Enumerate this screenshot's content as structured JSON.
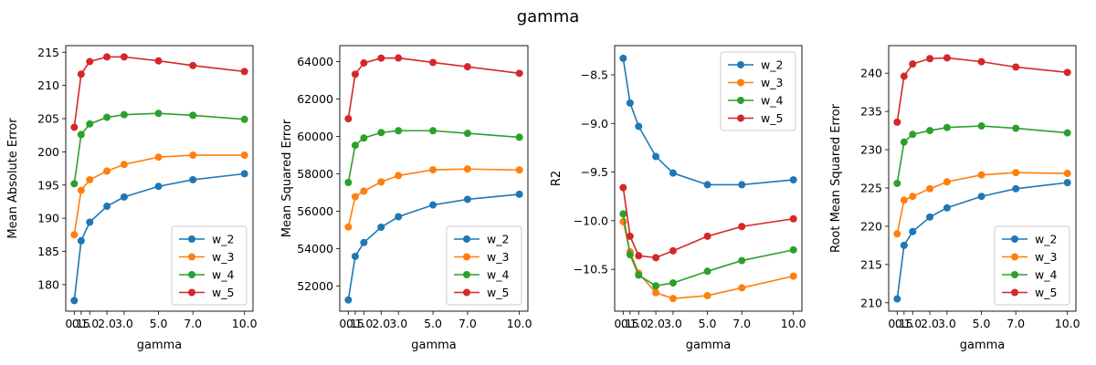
{
  "figure": {
    "title": "gamma"
  },
  "colors": {
    "w_2": "#1f77b4",
    "w_3": "#ff7f0e",
    "w_4": "#2ca02c",
    "w_5": "#d62728"
  },
  "chart_data": [
    {
      "type": "line",
      "xlabel": "gamma",
      "ylabel": "Mean Absolute Error",
      "x": [
        0.1,
        0.5,
        1.0,
        2.0,
        3.0,
        5.0,
        7.0,
        10.0
      ],
      "xticks": [
        0.1,
        0.5,
        1.0,
        2.0,
        3.0,
        5.0,
        7.0,
        10.0
      ],
      "xtick_labels": [
        "0.1",
        "0.5",
        "1.0",
        "2.0",
        "3.0",
        "5.0",
        "7.0",
        "10.0"
      ],
      "ylim": [
        176,
        216
      ],
      "yticks": [
        180,
        185,
        190,
        195,
        200,
        205,
        210,
        215
      ],
      "ytick_labels": [
        "180",
        "185",
        "190",
        "195",
        "200",
        "205",
        "210",
        "215"
      ],
      "legend": "lower-right",
      "grid": false,
      "series": [
        {
          "name": "w_2",
          "values": [
            177.6,
            186.6,
            189.4,
            191.8,
            193.2,
            194.8,
            195.8,
            196.7
          ]
        },
        {
          "name": "w_3",
          "values": [
            187.5,
            194.2,
            195.8,
            197.1,
            198.1,
            199.2,
            199.5,
            199.5
          ]
        },
        {
          "name": "w_4",
          "values": [
            195.2,
            202.6,
            204.2,
            205.2,
            205.6,
            205.8,
            205.5,
            204.9
          ]
        },
        {
          "name": "w_5",
          "values": [
            203.7,
            211.7,
            213.6,
            214.3,
            214.3,
            213.7,
            213.0,
            212.1
          ]
        }
      ]
    },
    {
      "type": "line",
      "xlabel": "gamma",
      "ylabel": "Mean Squared Error",
      "x": [
        0.1,
        0.5,
        1.0,
        2.0,
        3.0,
        5.0,
        7.0,
        10.0
      ],
      "xticks": [
        0.1,
        0.5,
        1.0,
        2.0,
        3.0,
        5.0,
        7.0,
        10.0
      ],
      "xtick_labels": [
        "0.1",
        "0.5",
        "1.0",
        "2.0",
        "3.0",
        "5.0",
        "7.0",
        "10.0"
      ],
      "ylim": [
        50650,
        64850
      ],
      "yticks": [
        52000,
        54000,
        56000,
        58000,
        60000,
        62000,
        64000
      ],
      "ytick_labels": [
        "52000",
        "54000",
        "56000",
        "58000",
        "60000",
        "62000",
        "64000"
      ],
      "legend": "lower-right",
      "grid": false,
      "series": [
        {
          "name": "w_2",
          "values": [
            51250,
            53580,
            54320,
            55140,
            55700,
            56330,
            56630,
            56900
          ]
        },
        {
          "name": "w_3",
          "values": [
            55150,
            56770,
            57070,
            57560,
            57900,
            58210,
            58250,
            58200
          ]
        },
        {
          "name": "w_4",
          "values": [
            57530,
            59520,
            59910,
            60200,
            60300,
            60300,
            60160,
            59950
          ]
        },
        {
          "name": "w_5",
          "values": [
            60940,
            63320,
            63920,
            64180,
            64190,
            63950,
            63720,
            63370
          ]
        }
      ]
    },
    {
      "type": "line",
      "xlabel": "gamma",
      "ylabel": "R2",
      "x": [
        0.1,
        0.5,
        1.0,
        2.0,
        3.0,
        5.0,
        7.0,
        10.0
      ],
      "xticks": [
        0.1,
        0.5,
        1.0,
        2.0,
        3.0,
        5.0,
        7.0,
        10.0
      ],
      "xtick_labels": [
        "0.1",
        "0.5",
        "1.0",
        "2.0",
        "3.0",
        "5.0",
        "7.0",
        "10.0"
      ],
      "ylim": [
        -10.93,
        -8.2
      ],
      "yticks": [
        -10.5,
        -10.0,
        -9.5,
        -9.0,
        -8.5
      ],
      "ytick_labels": [
        "−10.5",
        "−10.0",
        "−9.5",
        "−9.0",
        "−8.5"
      ],
      "legend": "upper-right",
      "grid": false,
      "series": [
        {
          "name": "w_2",
          "values": [
            -8.33,
            -8.79,
            -9.03,
            -9.34,
            -9.51,
            -9.63,
            -9.63,
            -9.58
          ]
        },
        {
          "name": "w_3",
          "values": [
            -10.01,
            -10.32,
            -10.54,
            -10.74,
            -10.8,
            -10.77,
            -10.69,
            -10.57
          ]
        },
        {
          "name": "w_4",
          "values": [
            -9.93,
            -10.35,
            -10.56,
            -10.67,
            -10.64,
            -10.52,
            -10.41,
            -10.3
          ]
        },
        {
          "name": "w_5",
          "values": [
            -9.66,
            -10.16,
            -10.36,
            -10.38,
            -10.31,
            -10.16,
            -10.06,
            -9.98
          ]
        }
      ]
    },
    {
      "type": "line",
      "xlabel": "gamma",
      "ylabel": "Root Mean Squared Error",
      "x": [
        0.1,
        0.5,
        1.0,
        2.0,
        3.0,
        5.0,
        7.0,
        10.0
      ],
      "xticks": [
        0.1,
        0.5,
        1.0,
        2.0,
        3.0,
        5.0,
        7.0,
        10.0
      ],
      "xtick_labels": [
        "0.1",
        "0.5",
        "1.0",
        "2.0",
        "3.0",
        "5.0",
        "7.0",
        "10.0"
      ],
      "ylim": [
        208.9,
        243.6
      ],
      "yticks": [
        210,
        215,
        220,
        225,
        230,
        235,
        240
      ],
      "ytick_labels": [
        "210",
        "215",
        "220",
        "225",
        "230",
        "235",
        "240"
      ],
      "legend": "lower-right",
      "grid": false,
      "series": [
        {
          "name": "w_2",
          "values": [
            210.5,
            217.5,
            219.3,
            221.2,
            222.4,
            223.9,
            224.9,
            225.7
          ]
        },
        {
          "name": "w_3",
          "values": [
            219.0,
            223.4,
            223.9,
            224.9,
            225.8,
            226.7,
            227.0,
            226.9
          ]
        },
        {
          "name": "w_4",
          "values": [
            225.6,
            231.0,
            232.0,
            232.5,
            232.9,
            233.1,
            232.8,
            232.2
          ]
        },
        {
          "name": "w_5",
          "values": [
            233.6,
            239.6,
            241.2,
            241.9,
            242.0,
            241.5,
            240.8,
            240.1
          ]
        }
      ]
    }
  ]
}
